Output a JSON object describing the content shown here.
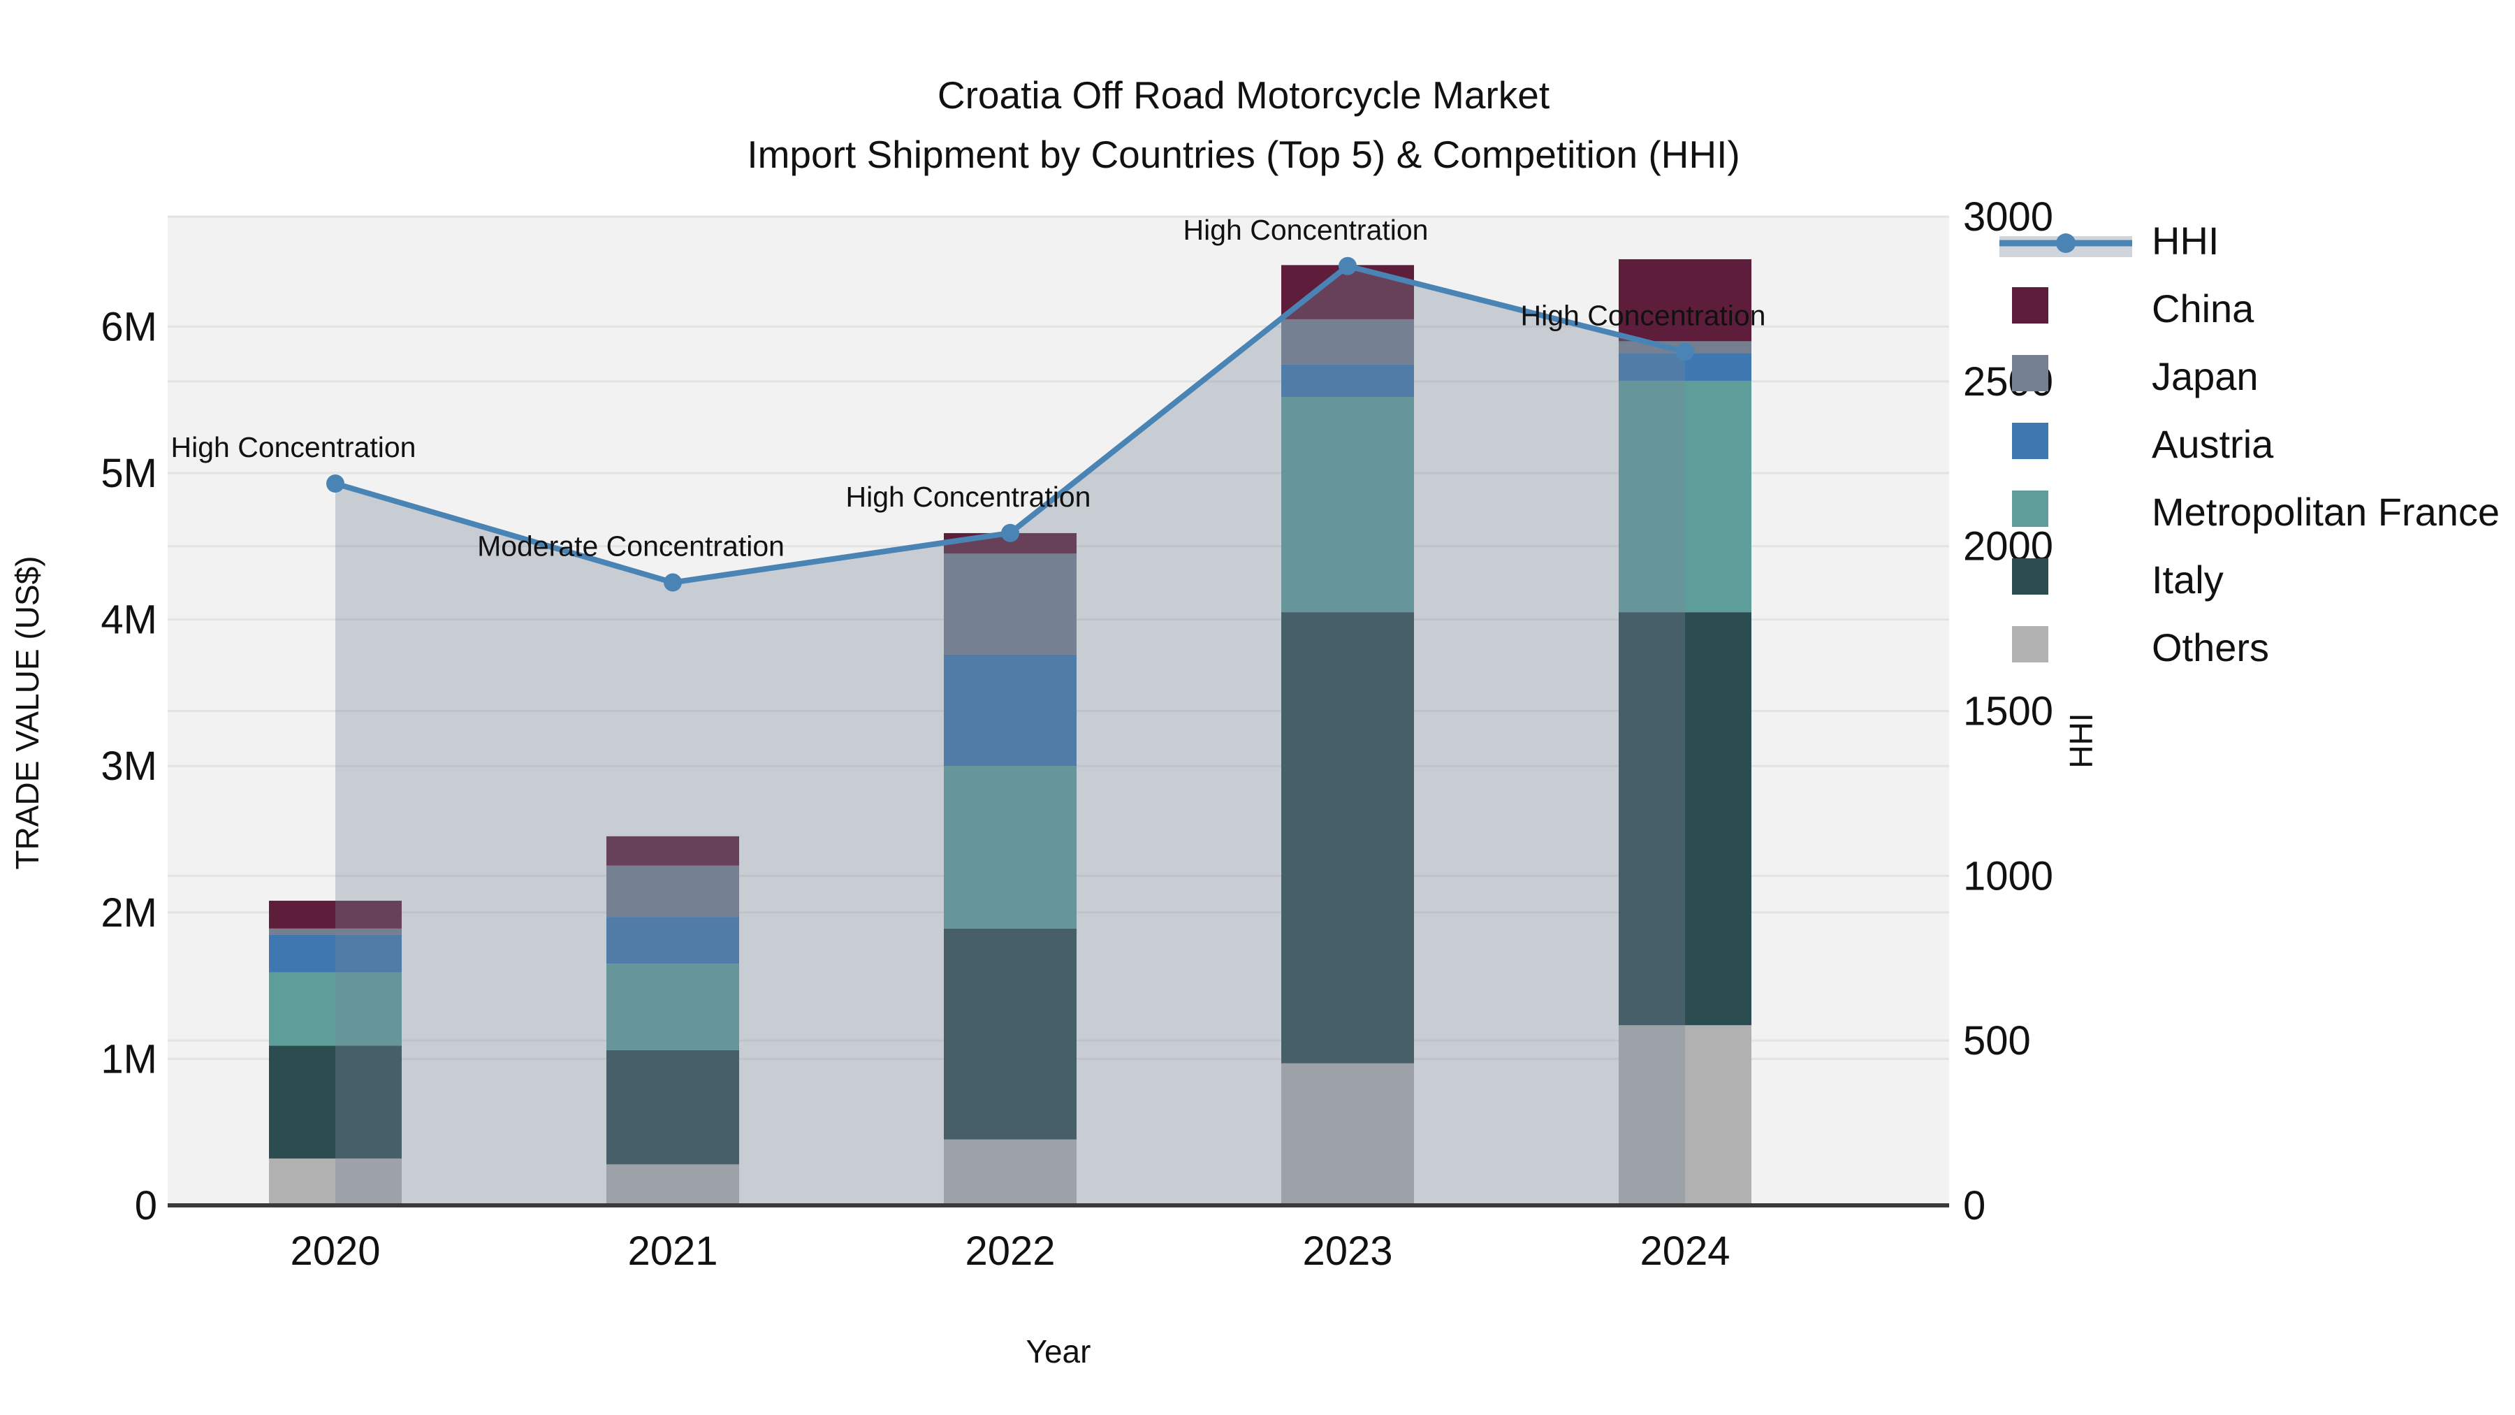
{
  "title": {
    "line1": "Croatia Off Road Motorcycle Market",
    "line2": "Import Shipment by Countries (Top 5) & Competition (HHI)"
  },
  "axes": {
    "x_title": "Year",
    "y_left_title": "TRADE VALUE (US$)",
    "y_right_title": "HHI",
    "y_left_ticks": [
      "0",
      "1M",
      "2M",
      "3M",
      "4M",
      "5M",
      "6M"
    ],
    "y_right_ticks": [
      "0",
      "500",
      "1000",
      "1500",
      "2000",
      "2500",
      "3000"
    ]
  },
  "legend": {
    "items": [
      {
        "label": "HHI",
        "type": "line",
        "color": "#4a84b5"
      },
      {
        "label": "China",
        "type": "swatch",
        "color": "#5e1d3a"
      },
      {
        "label": "Japan",
        "type": "swatch",
        "color": "#74808f"
      },
      {
        "label": "Austria",
        "type": "swatch",
        "color": "#3f78b1"
      },
      {
        "label": "Metropolitan France",
        "type": "swatch",
        "color": "#5d9e9b"
      },
      {
        "label": "Italy",
        "type": "swatch",
        "color": "#2c4d4f"
      },
      {
        "label": "Others",
        "type": "swatch",
        "color": "#b1b1b1"
      }
    ]
  },
  "chart_data": {
    "type": "bar+line",
    "categories": [
      "2020",
      "2021",
      "2022",
      "2023",
      "2024"
    ],
    "bar_unit": "million US$",
    "series": [
      {
        "name": "Others",
        "color": "#b1b1b1",
        "values": [
          0.32,
          0.28,
          0.45,
          0.97,
          1.23
        ]
      },
      {
        "name": "Italy",
        "color": "#2c4d4f",
        "values": [
          0.77,
          0.78,
          1.44,
          3.08,
          2.82
        ]
      },
      {
        "name": "Metropolitan France",
        "color": "#5d9e9b",
        "values": [
          0.5,
          0.59,
          1.11,
          1.47,
          1.58
        ]
      },
      {
        "name": "Austria",
        "color": "#3f78b1",
        "values": [
          0.26,
          0.32,
          0.76,
          0.22,
          0.19
        ]
      },
      {
        "name": "Japan",
        "color": "#74808f",
        "values": [
          0.04,
          0.35,
          0.69,
          0.31,
          0.08
        ]
      },
      {
        "name": "China",
        "color": "#5e1d3a",
        "values": [
          0.19,
          0.2,
          0.14,
          0.37,
          0.56
        ]
      }
    ],
    "bar_totals": [
      2.08,
      2.52,
      4.59,
      6.42,
      6.46
    ],
    "line_series": {
      "name": "HHI",
      "color": "#4a84b5",
      "area_color": "rgba(119,132,152,0.34)",
      "values": [
        2190,
        1890,
        2040,
        2850,
        2590
      ]
    },
    "annotations": [
      {
        "year": "2020",
        "label": "High Concentration"
      },
      {
        "year": "2021",
        "label": "Moderate Concentration"
      },
      {
        "year": "2022",
        "label": "High Concentration"
      },
      {
        "year": "2023",
        "label": "High Concentration"
      },
      {
        "year": "2024",
        "label": "High Concentration"
      }
    ],
    "title": "Croatia Off Road Motorcycle Market — Import Shipment by Countries (Top 5) & Competition (HHI)",
    "xlabel": "Year",
    "ylabel_left": "TRADE VALUE (US$)",
    "ylabel_right": "HHI",
    "ylim_left": [
      0,
      6.75
    ],
    "ylim_right": [
      0,
      3000
    ],
    "grid": true,
    "legend_position": "right"
  },
  "style": {
    "plot_bg": "#f2f2f2",
    "grid_color": "#e3e3e3",
    "axis_line_color": "#3a3a3a"
  }
}
